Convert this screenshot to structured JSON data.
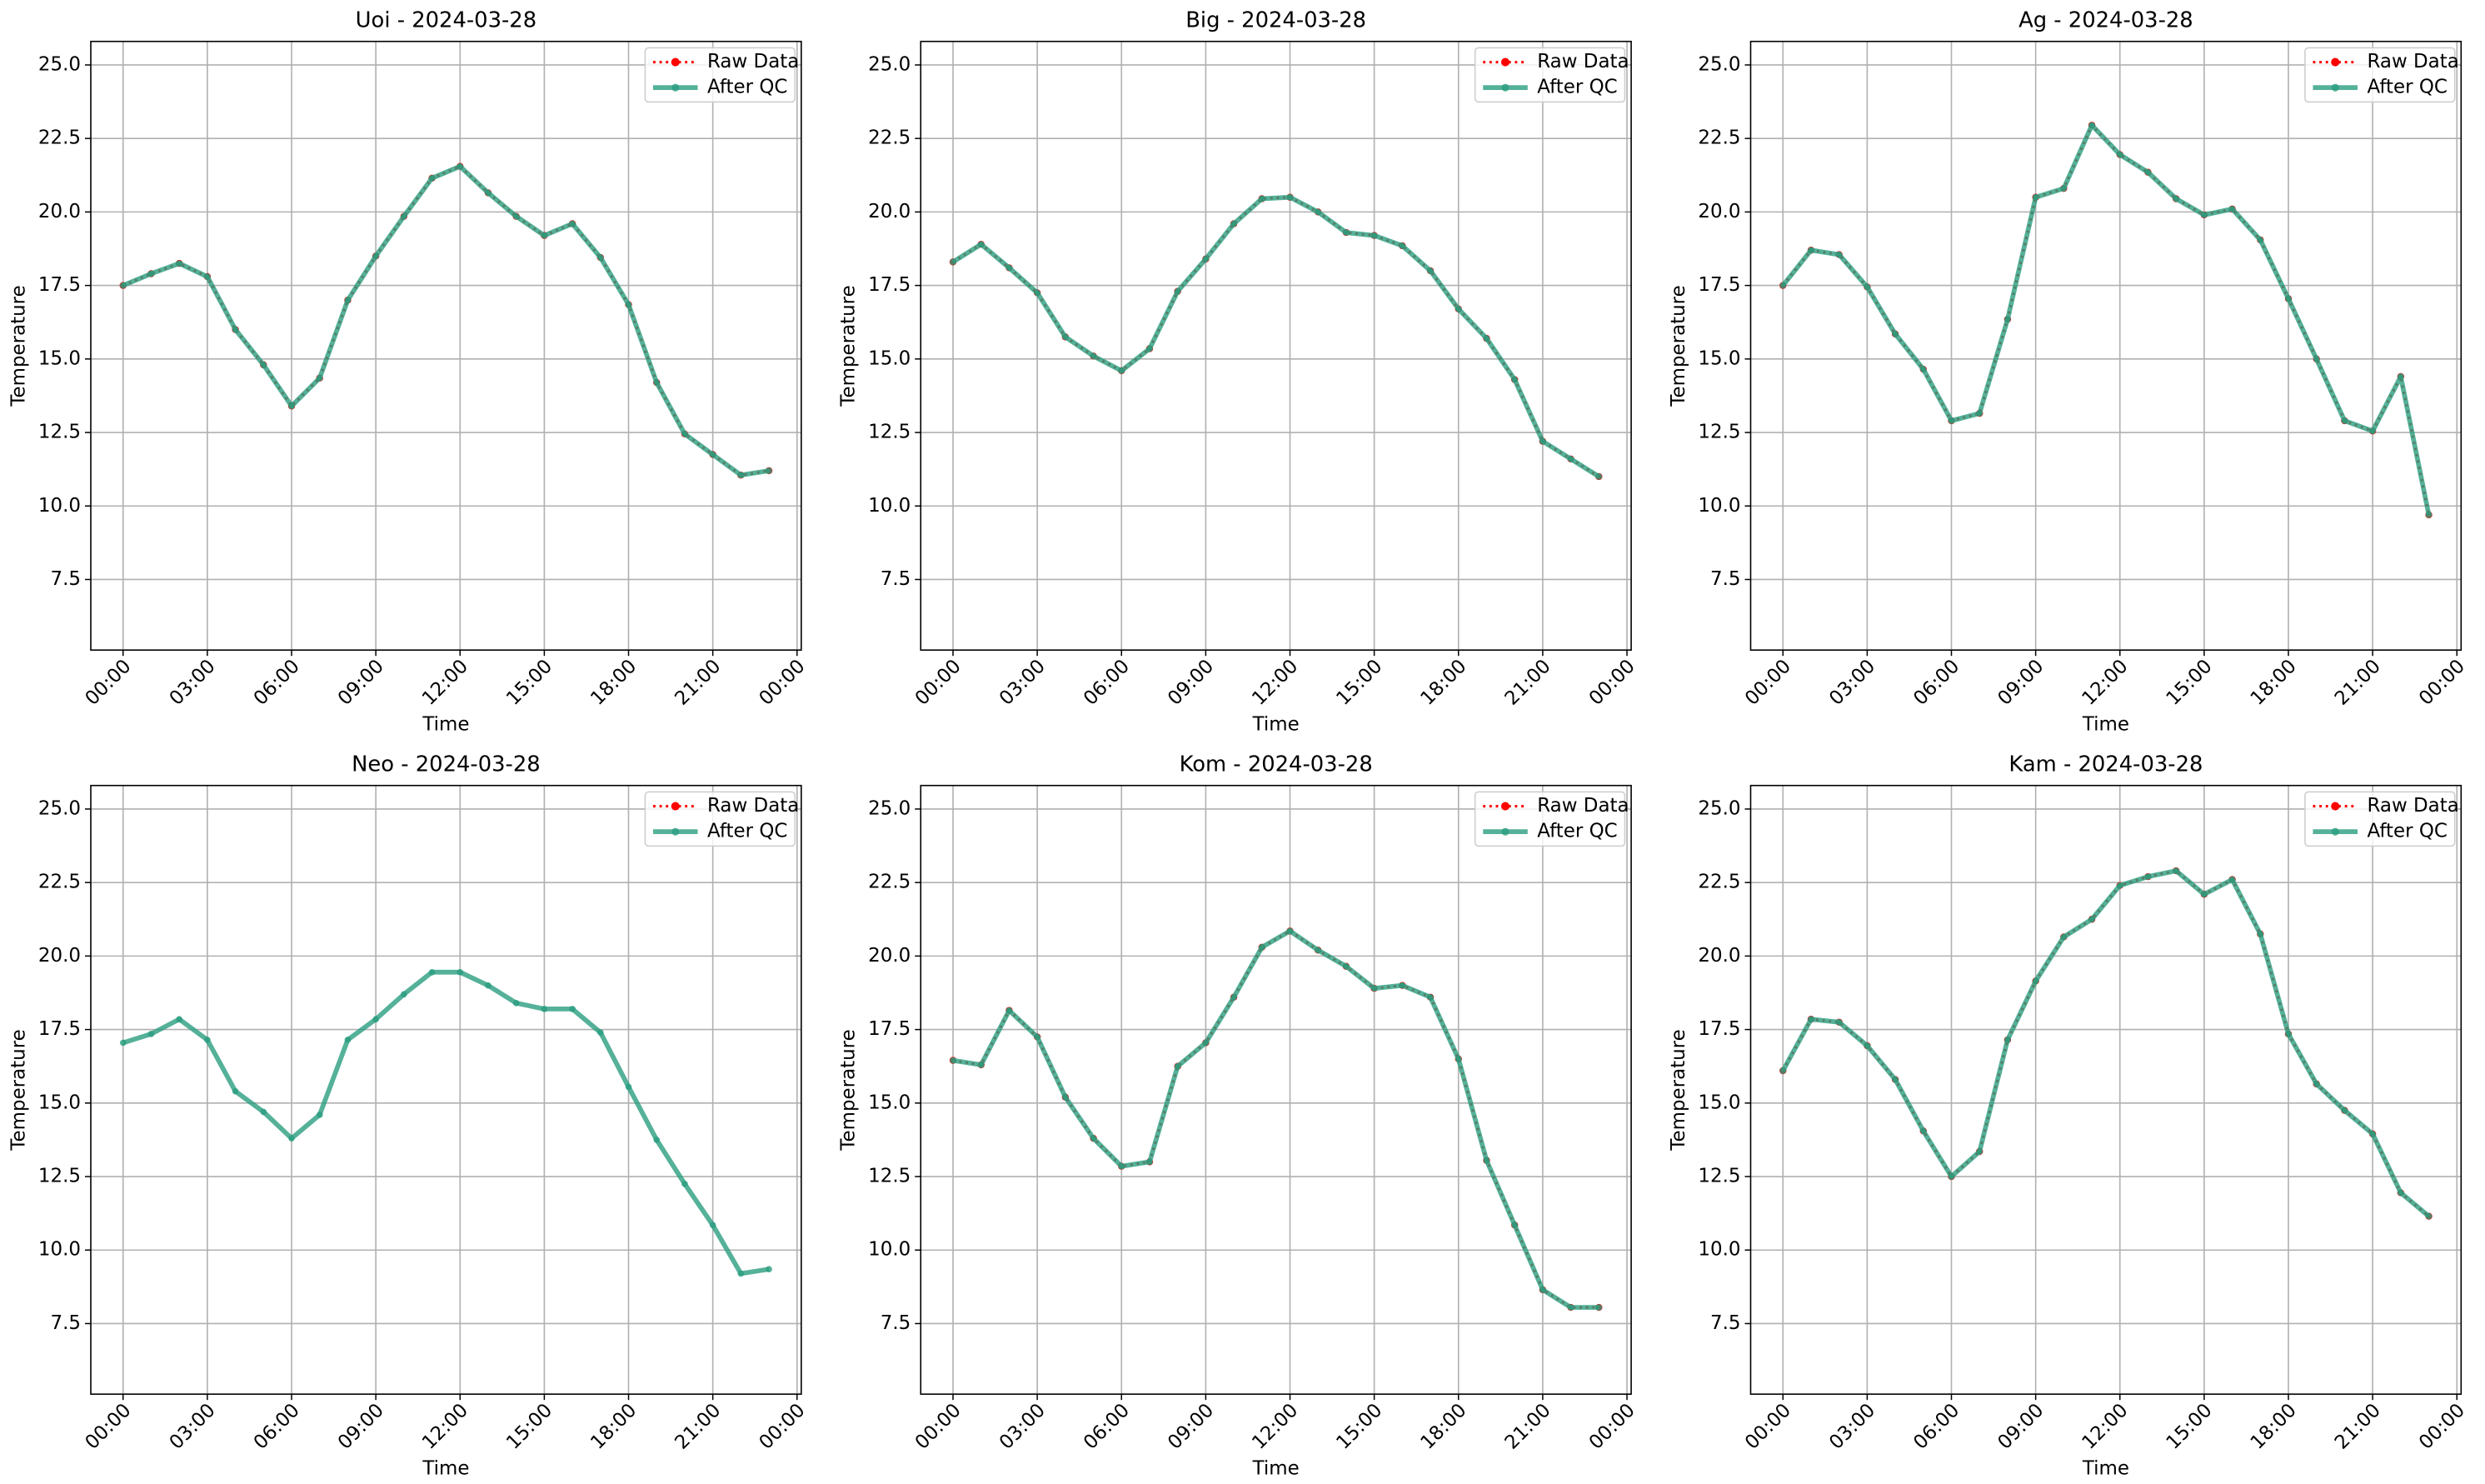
{
  "chart_data": [
    {
      "type": "line",
      "title": "Uoi - 2024-03-28",
      "xlabel": "Time",
      "ylabel": "Temperature",
      "x": [
        0,
        1,
        2,
        3,
        4,
        5,
        6,
        7,
        8,
        9,
        10,
        11,
        12,
        13,
        14,
        15,
        16,
        17,
        18,
        19,
        20,
        21,
        22,
        23
      ],
      "xlim": [
        -1.15,
        24.15
      ],
      "xticks": [
        {
          "value": 0,
          "label": "00:00"
        },
        {
          "value": 3,
          "label": "03:00"
        },
        {
          "value": 6,
          "label": "06:00"
        },
        {
          "value": 9,
          "label": "09:00"
        },
        {
          "value": 12,
          "label": "12:00"
        },
        {
          "value": 15,
          "label": "15:00"
        },
        {
          "value": 18,
          "label": "18:00"
        },
        {
          "value": 21,
          "label": "21:00"
        },
        {
          "value": 24,
          "label": "00:00"
        }
      ],
      "ylim": [
        5.1,
        25.8
      ],
      "yticks": [
        7.5,
        {
          "value": 10,
          "label": "10.0"
        },
        12.5,
        {
          "value": 15,
          "label": "15.0"
        },
        17.5,
        {
          "value": 20,
          "label": "20.0"
        },
        22.5,
        {
          "value": 25,
          "label": "25.0"
        }
      ],
      "grid": true,
      "legend": "upper right",
      "series": [
        {
          "name": "Raw Data",
          "color": "#ff0000",
          "values": [
            17.5,
            17.9,
            18.25,
            17.8,
            16.0,
            14.8,
            13.4,
            14.35,
            17.0,
            18.5,
            19.85,
            21.15,
            21.55,
            20.65,
            19.85,
            19.2,
            19.6,
            18.45,
            16.85,
            14.2,
            12.45,
            11.75,
            11.05,
            11.2
          ]
        },
        {
          "name": "After QC",
          "color": "#2a9d7f",
          "values": [
            17.5,
            17.9,
            18.25,
            17.8,
            16.0,
            14.8,
            13.4,
            14.35,
            17.0,
            18.5,
            19.85,
            21.15,
            21.55,
            20.65,
            19.85,
            19.2,
            19.6,
            18.45,
            16.85,
            14.2,
            12.45,
            11.75,
            11.05,
            11.2
          ]
        }
      ]
    },
    {
      "type": "line",
      "title": "Big - 2024-03-28",
      "xlabel": "Time",
      "ylabel": "Temperature",
      "x": [
        0,
        1,
        2,
        3,
        4,
        5,
        6,
        7,
        8,
        9,
        10,
        11,
        12,
        13,
        14,
        15,
        16,
        17,
        18,
        19,
        20,
        21,
        22,
        23
      ],
      "xlim": [
        -1.15,
        24.15
      ],
      "xticks": [
        {
          "value": 0,
          "label": "00:00"
        },
        {
          "value": 3,
          "label": "03:00"
        },
        {
          "value": 6,
          "label": "06:00"
        },
        {
          "value": 9,
          "label": "09:00"
        },
        {
          "value": 12,
          "label": "12:00"
        },
        {
          "value": 15,
          "label": "15:00"
        },
        {
          "value": 18,
          "label": "18:00"
        },
        {
          "value": 21,
          "label": "21:00"
        },
        {
          "value": 24,
          "label": "00:00"
        }
      ],
      "ylim": [
        5.1,
        25.8
      ],
      "yticks": [
        7.5,
        {
          "value": 10,
          "label": "10.0"
        },
        12.5,
        {
          "value": 15,
          "label": "15.0"
        },
        17.5,
        {
          "value": 20,
          "label": "20.0"
        },
        22.5,
        {
          "value": 25,
          "label": "25.0"
        }
      ],
      "grid": true,
      "legend": "upper right",
      "series": [
        {
          "name": "Raw Data",
          "color": "#ff0000",
          "values": [
            18.3,
            18.9,
            18.1,
            17.25,
            15.75,
            15.1,
            14.6,
            15.35,
            17.3,
            18.4,
            19.6,
            20.45,
            20.5,
            20.0,
            19.3,
            19.2,
            18.85,
            18.0,
            16.7,
            15.7,
            14.3,
            12.2,
            11.6,
            11.0
          ]
        },
        {
          "name": "After QC",
          "color": "#2a9d7f",
          "values": [
            18.3,
            18.9,
            18.1,
            17.25,
            15.75,
            15.1,
            14.6,
            15.35,
            17.3,
            18.4,
            19.6,
            20.45,
            20.5,
            20.0,
            19.3,
            19.2,
            18.85,
            18.0,
            16.7,
            15.7,
            14.3,
            12.2,
            11.6,
            11.0
          ]
        }
      ]
    },
    {
      "type": "line",
      "title": "Ag - 2024-03-28",
      "xlabel": "Time",
      "ylabel": "Temperature",
      "x": [
        0,
        1,
        2,
        3,
        4,
        5,
        6,
        7,
        8,
        9,
        10,
        11,
        12,
        13,
        14,
        15,
        16,
        17,
        18,
        19,
        20,
        21,
        22,
        23
      ],
      "xlim": [
        -1.15,
        24.15
      ],
      "xticks": [
        {
          "value": 0,
          "label": "00:00"
        },
        {
          "value": 3,
          "label": "03:00"
        },
        {
          "value": 6,
          "label": "06:00"
        },
        {
          "value": 9,
          "label": "09:00"
        },
        {
          "value": 12,
          "label": "12:00"
        },
        {
          "value": 15,
          "label": "15:00"
        },
        {
          "value": 18,
          "label": "18:00"
        },
        {
          "value": 21,
          "label": "21:00"
        },
        {
          "value": 24,
          "label": "00:00"
        }
      ],
      "ylim": [
        5.1,
        25.8
      ],
      "yticks": [
        7.5,
        {
          "value": 10,
          "label": "10.0"
        },
        12.5,
        {
          "value": 15,
          "label": "15.0"
        },
        17.5,
        {
          "value": 20,
          "label": "20.0"
        },
        22.5,
        {
          "value": 25,
          "label": "25.0"
        }
      ],
      "grid": true,
      "legend": "upper right",
      "series": [
        {
          "name": "Raw Data",
          "color": "#ff0000",
          "values": [
            17.5,
            18.7,
            18.55,
            17.45,
            15.85,
            14.65,
            12.9,
            13.15,
            16.35,
            20.5,
            20.8,
            22.95,
            21.95,
            21.35,
            20.45,
            19.9,
            20.1,
            19.05,
            17.05,
            15.0,
            12.9,
            12.55,
            14.4,
            9.7
          ]
        },
        {
          "name": "After QC",
          "color": "#2a9d7f",
          "values": [
            17.5,
            18.7,
            18.55,
            17.45,
            15.85,
            14.65,
            12.9,
            13.15,
            16.35,
            20.5,
            20.8,
            22.95,
            21.95,
            21.35,
            20.45,
            19.9,
            20.1,
            19.05,
            17.05,
            15.0,
            12.9,
            12.55,
            14.4,
            9.7
          ]
        }
      ]
    },
    {
      "type": "line",
      "title": "Neo - 2024-03-28",
      "xlabel": "Time",
      "ylabel": "Temperature",
      "x": [
        0,
        1,
        2,
        3,
        4,
        5,
        6,
        7,
        8,
        9,
        10,
        11,
        12,
        13,
        14,
        15,
        16,
        17,
        18,
        19,
        20,
        21,
        22,
        23
      ],
      "xlim": [
        -1.15,
        24.15
      ],
      "xticks": [
        {
          "value": 0,
          "label": "00:00"
        },
        {
          "value": 3,
          "label": "03:00"
        },
        {
          "value": 6,
          "label": "06:00"
        },
        {
          "value": 9,
          "label": "09:00"
        },
        {
          "value": 12,
          "label": "12:00"
        },
        {
          "value": 15,
          "label": "15:00"
        },
        {
          "value": 18,
          "label": "18:00"
        },
        {
          "value": 21,
          "label": "21:00"
        },
        {
          "value": 24,
          "label": "00:00"
        }
      ],
      "ylim": [
        5.1,
        25.8
      ],
      "yticks": [
        7.5,
        {
          "value": 10,
          "label": "10.0"
        },
        12.5,
        {
          "value": 15,
          "label": "15.0"
        },
        17.5,
        {
          "value": 20,
          "label": "20.0"
        },
        22.5,
        {
          "value": 25,
          "label": "25.0"
        }
      ],
      "grid": true,
      "legend": "upper right",
      "series": [
        {
          "name": "Raw Data",
          "color": "#ff0000",
          "values": [
            null,
            null,
            null,
            null,
            null,
            null,
            null,
            null,
            null,
            null,
            null,
            null,
            null,
            null,
            null,
            null,
            null,
            null,
            null,
            null,
            null,
            null,
            null,
            null
          ]
        },
        {
          "name": "After QC",
          "color": "#2a9d7f",
          "values": [
            17.05,
            17.35,
            17.85,
            17.15,
            15.4,
            14.7,
            13.8,
            14.6,
            17.15,
            17.85,
            18.7,
            19.45,
            19.45,
            19.0,
            18.4,
            18.2,
            18.2,
            17.4,
            15.55,
            13.75,
            12.25,
            10.85,
            9.2,
            9.35
          ]
        }
      ]
    },
    {
      "type": "line",
      "title": "Kom - 2024-03-28",
      "xlabel": "Time",
      "ylabel": "Temperature",
      "x": [
        0,
        1,
        2,
        3,
        4,
        5,
        6,
        7,
        8,
        9,
        10,
        11,
        12,
        13,
        14,
        15,
        16,
        17,
        18,
        19,
        20,
        21,
        22,
        23
      ],
      "xlim": [
        -1.15,
        24.15
      ],
      "xticks": [
        {
          "value": 0,
          "label": "00:00"
        },
        {
          "value": 3,
          "label": "03:00"
        },
        {
          "value": 6,
          "label": "06:00"
        },
        {
          "value": 9,
          "label": "09:00"
        },
        {
          "value": 12,
          "label": "12:00"
        },
        {
          "value": 15,
          "label": "15:00"
        },
        {
          "value": 18,
          "label": "18:00"
        },
        {
          "value": 21,
          "label": "21:00"
        },
        {
          "value": 24,
          "label": "00:00"
        }
      ],
      "ylim": [
        5.1,
        25.8
      ],
      "yticks": [
        7.5,
        {
          "value": 10,
          "label": "10.0"
        },
        12.5,
        {
          "value": 15,
          "label": "15.0"
        },
        17.5,
        {
          "value": 20,
          "label": "20.0"
        },
        22.5,
        {
          "value": 25,
          "label": "25.0"
        }
      ],
      "grid": true,
      "legend": "upper right",
      "series": [
        {
          "name": "Raw Data",
          "color": "#ff0000",
          "values": [
            16.45,
            16.3,
            18.15,
            17.25,
            15.2,
            13.8,
            12.85,
            13.0,
            16.25,
            17.05,
            18.6,
            20.3,
            20.85,
            20.2,
            19.65,
            18.9,
            19.0,
            18.6,
            16.5,
            13.05,
            10.85,
            8.65,
            8.05,
            8.05
          ]
        },
        {
          "name": "After QC",
          "color": "#2a9d7f",
          "values": [
            16.45,
            16.3,
            18.15,
            17.25,
            15.2,
            13.8,
            12.85,
            13.0,
            16.25,
            17.05,
            18.6,
            20.3,
            20.85,
            20.2,
            19.65,
            18.9,
            19.0,
            18.6,
            16.5,
            13.05,
            10.85,
            8.65,
            8.05,
            8.05
          ]
        }
      ]
    },
    {
      "type": "line",
      "title": "Kam - 2024-03-28",
      "xlabel": "Time",
      "ylabel": "Temperature",
      "x": [
        0,
        1,
        2,
        3,
        4,
        5,
        6,
        7,
        8,
        9,
        10,
        11,
        12,
        13,
        14,
        15,
        16,
        17,
        18,
        19,
        20,
        21,
        22,
        23
      ],
      "xlim": [
        -1.15,
        24.15
      ],
      "xticks": [
        {
          "value": 0,
          "label": "00:00"
        },
        {
          "value": 3,
          "label": "03:00"
        },
        {
          "value": 6,
          "label": "06:00"
        },
        {
          "value": 9,
          "label": "09:00"
        },
        {
          "value": 12,
          "label": "12:00"
        },
        {
          "value": 15,
          "label": "15:00"
        },
        {
          "value": 18,
          "label": "18:00"
        },
        {
          "value": 21,
          "label": "21:00"
        },
        {
          "value": 24,
          "label": "00:00"
        }
      ],
      "ylim": [
        5.1,
        25.8
      ],
      "yticks": [
        7.5,
        {
          "value": 10,
          "label": "10.0"
        },
        12.5,
        {
          "value": 15,
          "label": "15.0"
        },
        17.5,
        {
          "value": 20,
          "label": "20.0"
        },
        22.5,
        {
          "value": 25,
          "label": "25.0"
        }
      ],
      "grid": true,
      "legend": "upper right",
      "series": [
        {
          "name": "Raw Data",
          "color": "#ff0000",
          "values": [
            16.1,
            17.85,
            17.75,
            16.95,
            15.8,
            14.05,
            12.5,
            13.35,
            17.15,
            19.15,
            20.65,
            21.25,
            22.4,
            22.7,
            22.9,
            22.1,
            22.6,
            20.75,
            17.35,
            15.65,
            14.75,
            13.95,
            11.95,
            11.15
          ]
        },
        {
          "name": "After QC",
          "color": "#2a9d7f",
          "values": [
            16.1,
            17.85,
            17.75,
            16.95,
            15.8,
            14.05,
            12.5,
            13.35,
            17.15,
            19.15,
            20.65,
            21.25,
            22.4,
            22.7,
            22.9,
            22.1,
            22.6,
            20.75,
            17.35,
            15.65,
            14.75,
            13.95,
            11.95,
            11.15
          ]
        }
      ]
    }
  ]
}
